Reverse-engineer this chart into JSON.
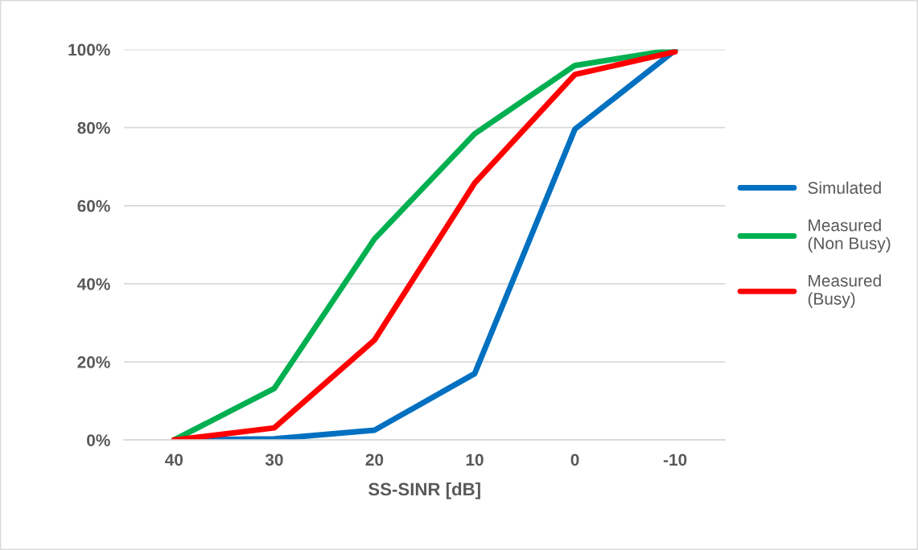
{
  "chart_data": {
    "type": "line",
    "xlabel": "SS-SINR [dB]",
    "categories": [
      "40",
      "30",
      "20",
      "10",
      "0",
      "-10"
    ],
    "series": [
      {
        "name": "Simulated",
        "color": "#0070c0",
        "values": [
          0,
          0.3,
          2.5,
          17,
          79.6,
          99.8
        ]
      },
      {
        "name": "Measured\n(Non Busy)",
        "color": "#00b050",
        "values": [
          0,
          13.2,
          51.5,
          78.4,
          95.9,
          100
        ]
      },
      {
        "name": "Measured\n(Busy)",
        "color": "#ff0000",
        "values": [
          0,
          3.1,
          25.6,
          65.8,
          93.6,
          99.4
        ]
      }
    ],
    "ylim": [
      0,
      100
    ],
    "yticks": [
      {
        "value": 0,
        "label": "0%"
      },
      {
        "value": 20,
        "label": "20%"
      },
      {
        "value": 40,
        "label": "40%"
      },
      {
        "value": 60,
        "label": "60%"
      },
      {
        "value": 80,
        "label": "80%"
      },
      {
        "value": 100,
        "label": "100%"
      }
    ],
    "grid": "y",
    "legend": "right",
    "marker": "none",
    "line_style": "solid"
  }
}
